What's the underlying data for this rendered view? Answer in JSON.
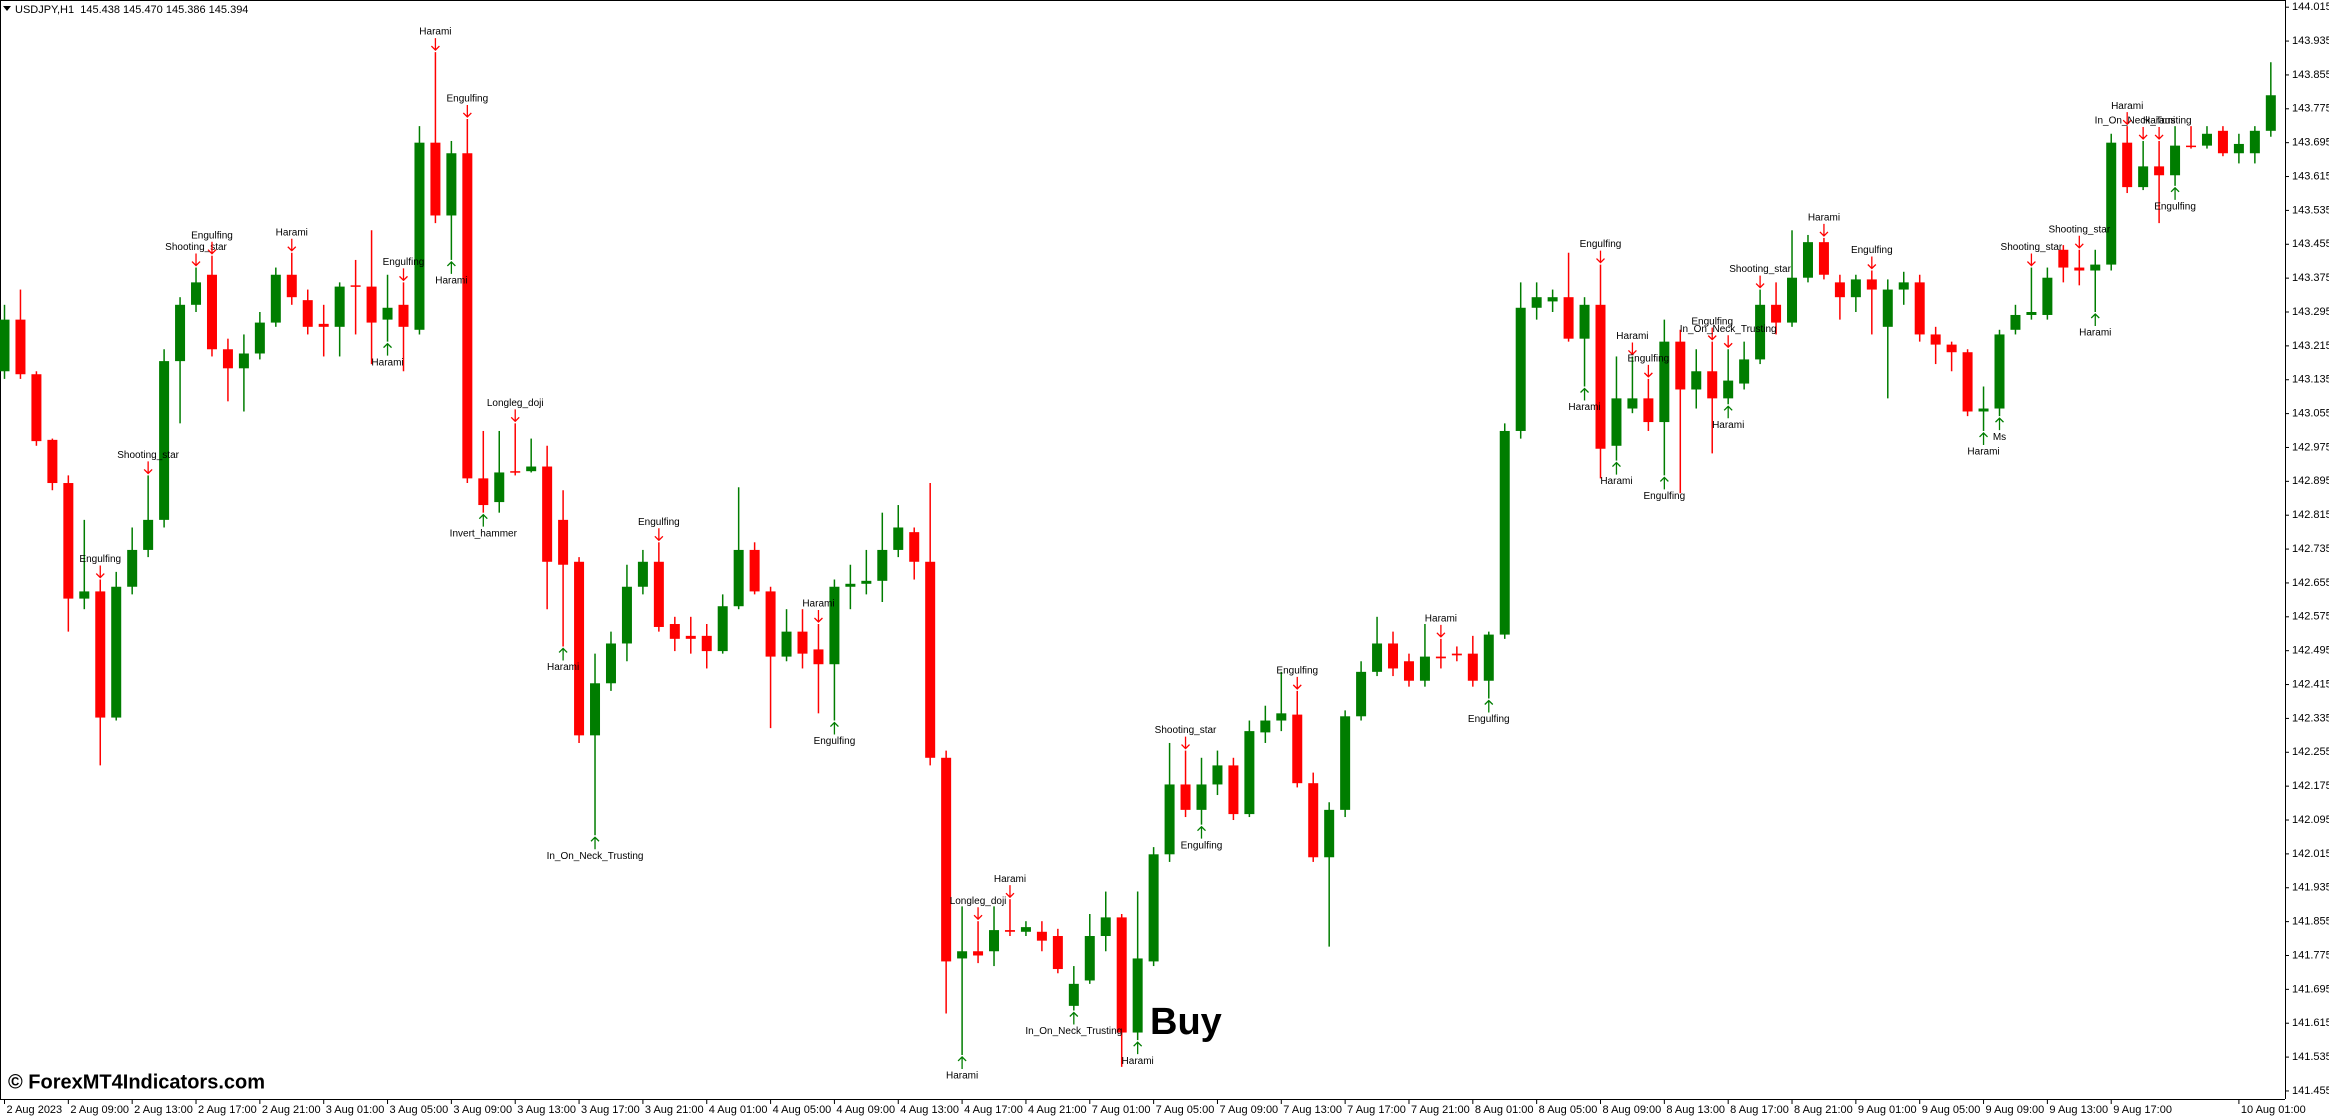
{
  "chart_data": {
    "type": "candlestick",
    "header": "USDJPY,H1  145.438 145.470 145.386 145.394",
    "watermark": "© ForexMT4Indicators.com",
    "signal_label": "Buy",
    "up_color": "#007d00",
    "down_color": "#ff0000",
    "grid": false,
    "ylim": [
      141.436,
      144.032
    ],
    "yticks": [
      144.015,
      143.935,
      143.855,
      143.775,
      143.695,
      143.615,
      143.535,
      143.455,
      143.375,
      143.295,
      143.215,
      143.135,
      143.055,
      142.975,
      142.895,
      142.815,
      142.735,
      142.655,
      142.575,
      142.495,
      142.415,
      142.335,
      142.255,
      142.175,
      142.095,
      142.015,
      141.935,
      141.855,
      141.775,
      141.695,
      141.615,
      141.535,
      141.455
    ],
    "categories": [
      "2 Aug 2023",
      null,
      null,
      null,
      "2 Aug 09:00",
      null,
      null,
      null,
      "2 Aug 13:00",
      null,
      null,
      null,
      "2 Aug 17:00",
      null,
      null,
      null,
      "2 Aug 21:00",
      null,
      null,
      null,
      "3 Aug 01:00",
      null,
      null,
      null,
      "3 Aug 05:00",
      null,
      null,
      null,
      "3 Aug 09:00",
      null,
      null,
      null,
      "3 Aug 13:00",
      null,
      null,
      null,
      "3 Aug 17:00",
      null,
      null,
      null,
      "3 Aug 21:00",
      null,
      null,
      null,
      "4 Aug 01:00",
      null,
      null,
      null,
      "4 Aug 05:00",
      null,
      null,
      null,
      "4 Aug 09:00",
      null,
      null,
      null,
      "4 Aug 13:00",
      null,
      null,
      null,
      "4 Aug 17:00",
      null,
      null,
      null,
      "4 Aug 21:00",
      null,
      null,
      null,
      "7 Aug 01:00",
      null,
      null,
      null,
      "7 Aug 05:00",
      null,
      null,
      null,
      "7 Aug 09:00",
      null,
      null,
      null,
      "7 Aug 13:00",
      null,
      null,
      null,
      "7 Aug 17:00",
      null,
      null,
      null,
      "7 Aug 21:00",
      null,
      null,
      null,
      "8 Aug 01:00",
      null,
      null,
      null,
      "8 Aug 05:00",
      null,
      null,
      null,
      "8 Aug 09:00",
      null,
      null,
      null,
      "8 Aug 13:00",
      null,
      null,
      null,
      "8 Aug 17:00",
      null,
      null,
      null,
      "8 Aug 21:00",
      null,
      null,
      null,
      "9 Aug 01:00",
      null,
      null,
      null,
      "9 Aug 05:00",
      null,
      null,
      null,
      "9 Aug 09:00",
      null,
      null,
      null,
      "9 Aug 13:00",
      null,
      null,
      null,
      "9 Aug 17:00",
      null,
      null,
      null,
      null,
      null,
      null,
      null,
      "10 Aug 01:00",
      null,
      null
    ],
    "open": [
      143.155,
      143.277,
      143.148,
      142.993,
      142.891,
      142.618,
      142.635,
      142.337,
      142.646,
      142.733,
      142.804,
      143.179,
      143.312,
      143.383,
      143.207,
      143.162,
      143.197,
      143.27,
      143.383,
      143.323,
      143.267,
      143.26,
      143.358,
      143.355,
      143.277,
      143.312,
      143.253,
      143.695,
      143.523,
      143.67,
      142.902,
      142.846,
      142.919,
      142.919,
      142.93,
      142.804,
      142.705,
      142.295,
      142.418,
      142.512,
      142.646,
      142.705,
      142.558,
      142.53,
      142.53,
      142.494,
      142.6,
      142.733,
      142.635,
      142.481,
      142.54,
      142.498,
      142.463,
      142.646,
      142.653,
      142.66,
      142.733,
      142.775,
      142.705,
      142.242,
      141.768,
      141.785,
      141.785,
      141.835,
      141.831,
      141.831,
      141.821,
      141.656,
      141.716,
      141.821,
      141.865,
      141.593,
      141.761,
      142.014,
      142.179,
      142.119,
      142.179,
      142.224,
      142.109,
      142.302,
      142.33,
      142.344,
      142.182,
      142.007,
      142.119,
      142.34,
      142.445,
      142.512,
      142.47,
      142.424,
      142.481,
      142.488,
      142.488,
      142.424,
      142.533,
      143.014,
      143.305,
      143.32,
      143.33,
      143.232,
      143.312,
      142.979,
      143.067,
      143.091,
      143.035,
      143.225,
      143.112,
      143.155,
      143.091,
      143.126,
      143.183,
      143.312,
      143.27,
      143.376,
      143.46,
      143.365,
      143.33,
      143.372,
      143.26,
      143.348,
      143.365,
      143.242,
      143.218,
      143.2,
      143.06,
      143.067,
      143.253,
      143.288,
      143.288,
      143.442,
      143.4,
      143.393,
      143.407,
      143.695,
      143.59,
      143.639,
      143.618,
      143.688,
      143.688,
      143.723,
      143.67,
      143.67,
      143.723
    ],
    "high": [
      143.312,
      143.348,
      143.155,
      142.996,
      142.909,
      142.804,
      142.663,
      142.681,
      142.786,
      142.909,
      143.207,
      143.33,
      143.4,
      143.428,
      143.232,
      143.242,
      143.295,
      143.4,
      143.435,
      143.348,
      143.312,
      143.365,
      143.418,
      143.488,
      143.383,
      143.365,
      143.734,
      143.909,
      143.699,
      143.751,
      143.014,
      143.014,
      143.032,
      142.996,
      142.979,
      142.874,
      142.716,
      142.488,
      142.54,
      142.698,
      142.733,
      142.751,
      142.575,
      142.575,
      142.558,
      142.628,
      142.881,
      142.751,
      142.646,
      142.593,
      142.593,
      142.558,
      142.663,
      142.698,
      142.733,
      142.821,
      142.839,
      142.786,
      142.891,
      142.259,
      141.891,
      141.856,
      141.891,
      141.908,
      141.856,
      141.856,
      141.838,
      141.75,
      141.873,
      141.926,
      141.873,
      141.926,
      142.031,
      142.277,
      142.259,
      142.242,
      142.259,
      142.242,
      142.33,
      142.365,
      142.445,
      142.4,
      142.207,
      142.137,
      142.354,
      142.47,
      142.575,
      142.54,
      142.488,
      142.558,
      142.523,
      142.505,
      142.53,
      142.54,
      143.032,
      143.365,
      143.365,
      143.348,
      143.435,
      143.33,
      143.407,
      143.19,
      143.19,
      143.137,
      143.277,
      143.253,
      143.207,
      143.225,
      143.207,
      143.225,
      143.348,
      143.365,
      143.488,
      143.477,
      143.47,
      143.383,
      143.383,
      143.393,
      143.372,
      143.39,
      143.383,
      143.26,
      143.225,
      143.207,
      143.119,
      143.253,
      143.312,
      143.4,
      143.4,
      143.453,
      143.442,
      143.442,
      143.716,
      143.734,
      143.699,
      143.699,
      143.734,
      143.734,
      143.734,
      143.734,
      143.716,
      143.734,
      143.885
    ],
    "low": [
      143.137,
      143.137,
      142.979,
      142.874,
      142.54,
      142.593,
      142.224,
      142.33,
      142.628,
      142.716,
      142.786,
      143.032,
      143.295,
      143.19,
      143.084,
      143.06,
      143.183,
      143.26,
      143.312,
      143.242,
      143.19,
      143.19,
      143.242,
      143.172,
      143.225,
      143.155,
      143.242,
      143.505,
      143.418,
      142.891,
      142.821,
      142.821,
      142.909,
      142.916,
      142.593,
      142.505,
      142.277,
      142.059,
      142.4,
      142.47,
      142.628,
      142.54,
      142.494,
      142.488,
      142.453,
      142.488,
      142.593,
      142.628,
      142.312,
      142.47,
      142.453,
      142.347,
      142.33,
      142.593,
      142.628,
      142.61,
      142.716,
      142.663,
      142.224,
      141.638,
      141.54,
      141.757,
      141.75,
      141.821,
      141.821,
      141.785,
      141.733,
      141.645,
      141.708,
      141.785,
      141.512,
      141.575,
      141.75,
      141.996,
      142.102,
      142.084,
      142.154,
      142.095,
      142.102,
      142.277,
      142.305,
      142.172,
      141.996,
      141.796,
      142.102,
      142.33,
      142.435,
      142.435,
      142.41,
      142.41,
      142.453,
      142.47,
      142.41,
      142.382,
      142.523,
      142.996,
      143.277,
      143.295,
      143.225,
      143.119,
      142.902,
      142.944,
      143.056,
      143.014,
      142.909,
      142.867,
      143.067,
      142.961,
      143.077,
      143.112,
      143.172,
      143.242,
      143.26,
      143.365,
      143.372,
      143.277,
      143.295,
      143.242,
      143.091,
      143.312,
      143.225,
      143.172,
      143.155,
      143.049,
      143.014,
      143.049,
      143.242,
      143.277,
      143.277,
      143.365,
      143.358,
      143.295,
      143.393,
      143.576,
      143.583,
      143.505,
      143.593,
      143.681,
      143.681,
      143.663,
      143.646,
      143.646,
      143.709
    ],
    "close": [
      143.277,
      143.148,
      142.99,
      142.891,
      142.618,
      142.635,
      142.337,
      142.646,
      142.733,
      142.804,
      143.179,
      143.312,
      143.365,
      143.207,
      143.162,
      143.197,
      143.27,
      143.383,
      143.33,
      143.26,
      143.26,
      143.355,
      143.355,
      143.27,
      143.305,
      143.26,
      143.695,
      143.523,
      143.67,
      142.902,
      142.839,
      142.916,
      142.916,
      142.93,
      142.705,
      142.698,
      142.295,
      142.418,
      142.512,
      142.646,
      142.705,
      142.551,
      142.523,
      142.523,
      142.494,
      142.6,
      142.733,
      142.635,
      142.481,
      142.54,
      142.488,
      142.463,
      142.646,
      142.653,
      142.66,
      142.733,
      142.786,
      142.705,
      142.242,
      141.761,
      141.785,
      141.775,
      141.835,
      141.831,
      141.842,
      141.81,
      141.743,
      141.708,
      141.821,
      141.865,
      141.593,
      141.768,
      142.014,
      142.179,
      142.119,
      142.179,
      142.224,
      142.109,
      142.305,
      142.33,
      142.347,
      142.182,
      142.007,
      142.119,
      142.34,
      142.445,
      142.512,
      142.453,
      142.424,
      142.481,
      142.477,
      142.484,
      142.424,
      142.533,
      143.014,
      143.305,
      143.33,
      143.33,
      143.232,
      143.312,
      142.972,
      143.091,
      143.091,
      143.035,
      143.225,
      143.112,
      143.155,
      143.091,
      143.133,
      143.183,
      143.312,
      143.27,
      143.376,
      143.46,
      143.383,
      143.33,
      143.372,
      143.348,
      143.348,
      143.365,
      143.242,
      143.218,
      143.2,
      143.06,
      143.067,
      143.242,
      143.288,
      143.295,
      143.376,
      143.4,
      143.393,
      143.407,
      143.695,
      143.59,
      143.639,
      143.618,
      143.688,
      143.685,
      143.716,
      143.67,
      143.692,
      143.723,
      143.807
    ],
    "annotations": [
      {
        "text": "Engulfing",
        "index": 6,
        "side": "above"
      },
      {
        "text": "Shooting_star",
        "index": 9,
        "side": "above"
      },
      {
        "text": "Shooting_star",
        "index": 12,
        "side": "above"
      },
      {
        "text": "Engulfing",
        "index": 13,
        "side": "above"
      },
      {
        "text": "Harami",
        "index": 18,
        "side": "above"
      },
      {
        "text": "Harami",
        "index": 24,
        "side": "below"
      },
      {
        "text": "Engulfing",
        "index": 25,
        "side": "above"
      },
      {
        "text": "Harami",
        "index": 27,
        "side": "above"
      },
      {
        "text": "Harami",
        "index": 28,
        "side": "below"
      },
      {
        "text": "Engulfing",
        "index": 29,
        "side": "above"
      },
      {
        "text": "Invert_hammer",
        "index": 30,
        "side": "below"
      },
      {
        "text": "Longleg_doji",
        "index": 32,
        "side": "above"
      },
      {
        "text": "Harami",
        "index": 35,
        "side": "below"
      },
      {
        "text": "In_On_Neck_Trusting",
        "index": 37,
        "side": "below"
      },
      {
        "text": "Engulfing",
        "index": 41,
        "side": "above"
      },
      {
        "text": "Harami",
        "index": 51,
        "side": "above"
      },
      {
        "text": "Engulfing",
        "index": 52,
        "side": "below"
      },
      {
        "text": "Harami",
        "index": 60,
        "side": "below"
      },
      {
        "text": "Longleg_doji",
        "index": 61,
        "side": "above"
      },
      {
        "text": "Harami",
        "index": 63,
        "side": "above"
      },
      {
        "text": "In_On_Neck_Trusting",
        "index": 67,
        "side": "below"
      },
      {
        "text": "Harami",
        "index": 71,
        "side": "below"
      },
      {
        "text": "Shooting_star",
        "index": 74,
        "side": "above"
      },
      {
        "text": "Engulfing",
        "index": 75,
        "side": "below"
      },
      {
        "text": "Engulfing",
        "index": 81,
        "side": "above"
      },
      {
        "text": "Harami",
        "index": 90,
        "side": "above"
      },
      {
        "text": "Engulfing",
        "index": 93,
        "side": "below"
      },
      {
        "text": "Harami",
        "index": 99,
        "side": "below"
      },
      {
        "text": "Engulfing",
        "index": 100,
        "side": "above"
      },
      {
        "text": "Harami",
        "index": 101,
        "side": "below"
      },
      {
        "text": "Harami",
        "index": 102,
        "side": "above"
      },
      {
        "text": "Engulfing",
        "index": 103,
        "side": "above"
      },
      {
        "text": "Engulfing",
        "index": 104,
        "side": "below"
      },
      {
        "text": "Engulfing",
        "index": 107,
        "side": "above"
      },
      {
        "text": "In_On_Neck_Trusting",
        "index": 108,
        "side": "above"
      },
      {
        "text": "Harami",
        "index": 108,
        "side": "below"
      },
      {
        "text": "Shooting_star",
        "index": 110,
        "side": "above"
      },
      {
        "text": "Harami",
        "index": 114,
        "side": "above"
      },
      {
        "text": "Engulfing",
        "index": 117,
        "side": "above"
      },
      {
        "text": "Harami",
        "index": 124,
        "side": "below"
      },
      {
        "text": "Ms",
        "index": 125,
        "side": "below"
      },
      {
        "text": "Shooting_star",
        "index": 127,
        "side": "above"
      },
      {
        "text": "Shooting_star",
        "index": 130,
        "side": "above"
      },
      {
        "text": "Harami",
        "index": 131,
        "side": "below"
      },
      {
        "text": "Harami",
        "index": 133,
        "side": "above"
      },
      {
        "text": "In_On_Neck_Trusting",
        "index": 134,
        "side": "above"
      },
      {
        "text": "Harami",
        "index": 135,
        "side": "above"
      },
      {
        "text": "Engulfing",
        "index": 136,
        "side": "below"
      }
    ]
  }
}
